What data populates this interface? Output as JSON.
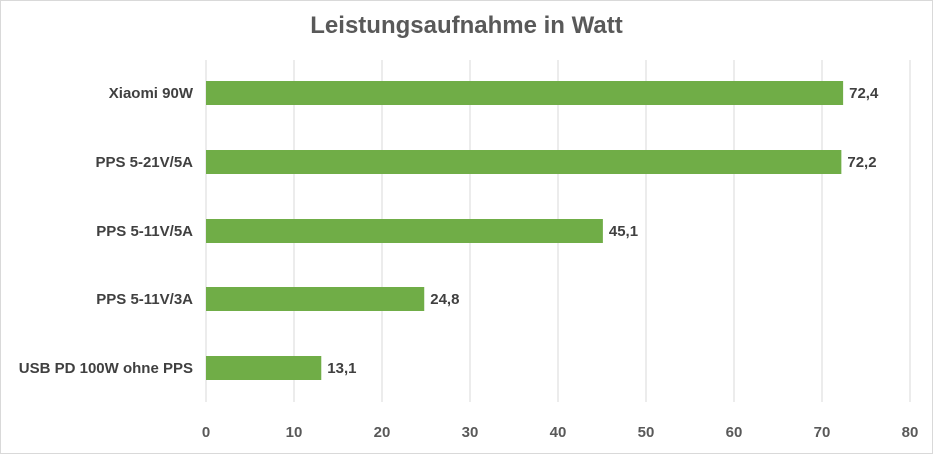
{
  "chart_data": {
    "type": "bar",
    "orientation": "horizontal",
    "title": "Leistungsaufnahme in Watt",
    "xlabel": "",
    "ylabel": "",
    "categories": [
      "Xiaomi 90W",
      "PPS 5-21V/5A",
      "PPS 5-11V/5A",
      "PPS 5-11V/3A",
      "USB PD 100W ohne PPS"
    ],
    "values": [
      72.4,
      72.2,
      45.1,
      24.8,
      13.1
    ],
    "value_labels": [
      "72,4",
      "72,2",
      "45,1",
      "24,8",
      "13,1"
    ],
    "xlim": [
      0,
      80
    ],
    "xticks": [
      0,
      10,
      20,
      30,
      40,
      50,
      60,
      70,
      80
    ],
    "grid": "vertical",
    "legend": "none",
    "colors": {
      "bar": "#70ad47",
      "grid": "#d9d9d9",
      "text": "#404040",
      "axis_text": "#595959"
    }
  }
}
